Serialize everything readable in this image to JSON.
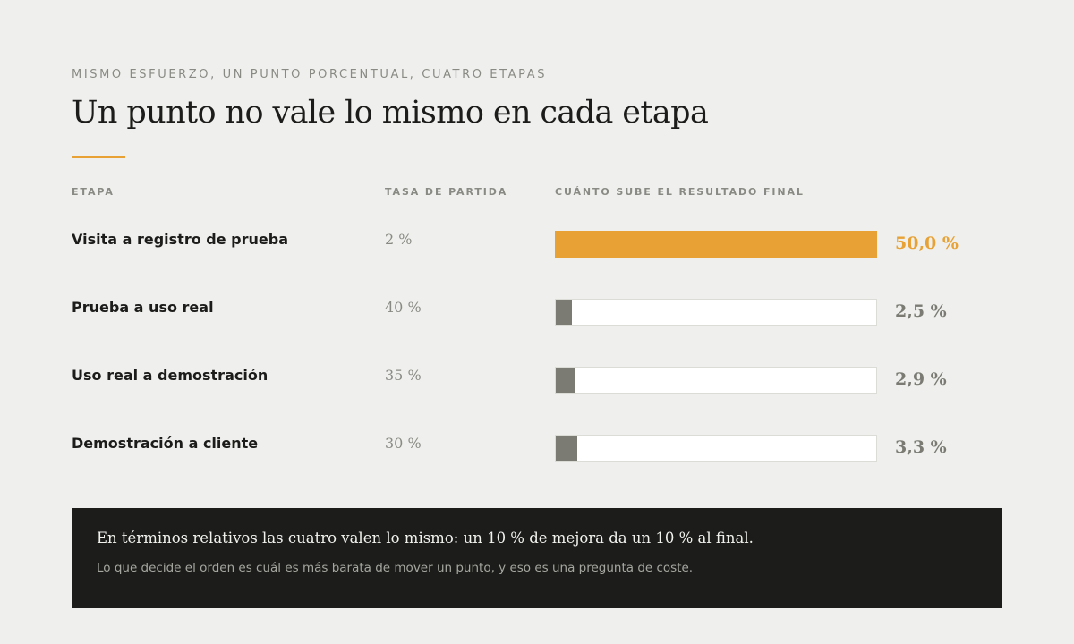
{
  "header": {
    "eyebrow": "MISMO ESFUERZO, UN PUNTO PORCENTUAL, CUATRO ETAPAS",
    "title": "Un punto no vale lo mismo en cada etapa"
  },
  "columns": {
    "stage": "ETAPA",
    "rate": "TASA DE PARTIDA",
    "gain": "CUÁNTO SUBE EL RESULTADO FINAL"
  },
  "chart_data": {
    "type": "bar",
    "orientation": "horizontal",
    "categories": [
      "Visita a registro de prueba",
      "Prueba a uso real",
      "Uso real a demostración",
      "Demostración a cliente"
    ],
    "starting_rates": [
      "2 %",
      "40 %",
      "35 %",
      "30 %"
    ],
    "values": [
      50.0,
      2.5,
      2.9,
      3.3
    ],
    "value_labels": [
      "50,0 %",
      "2,5 %",
      "2,9 %",
      "3,3 %"
    ],
    "xlim": [
      0,
      50
    ],
    "highlight_index": 0,
    "colors": {
      "highlight": "#e8a135",
      "default": "#7b7b74",
      "track": "#ffffff"
    },
    "title": "Un punto no vale lo mismo en cada etapa",
    "xlabel": "CUÁNTO SUBE EL RESULTADO FINAL",
    "ylabel": "ETAPA",
    "grid": false,
    "legend": "none"
  },
  "note": {
    "main": "En términos relativos las cuatro valen lo mismo: un 10 % de mejora da un 10 % al final.",
    "sub": "Lo que decide el orden es cuál es más barata de mover un punto, y eso es una pregunta de coste."
  }
}
